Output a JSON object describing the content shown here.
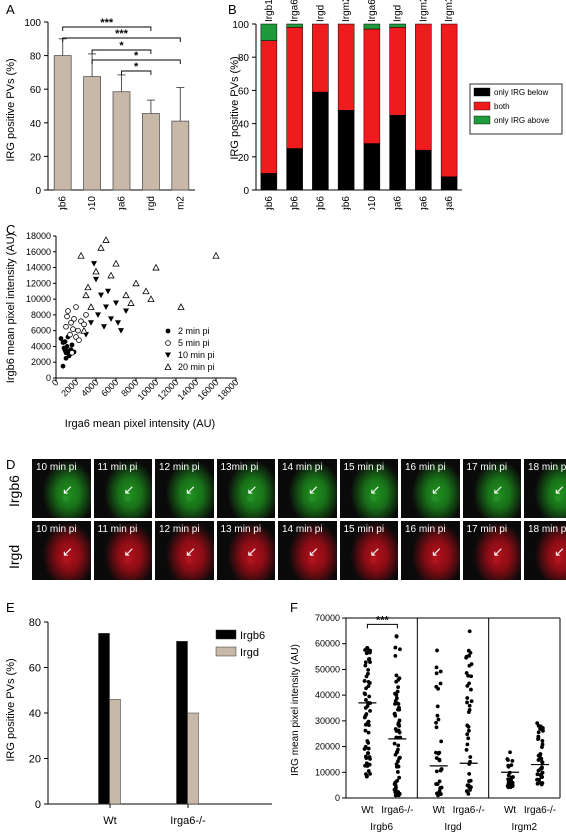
{
  "panels": {
    "A": "A",
    "B": "B",
    "C": "C",
    "D": "D",
    "E": "E",
    "F": "F"
  },
  "colors": {
    "bar_tan": "#c7b8a8",
    "black": "#000000",
    "red": "#ee1c1c",
    "green": "#1f9a3a",
    "mic_green": "#1f8f1f",
    "mic_red": "#b0101a"
  },
  "chart_data": [
    {
      "id": "A",
      "type": "bar",
      "ylabel": "IRG positive PVs (%)",
      "categories": [
        "Irgb6",
        "Irgb10",
        "Irga6",
        "Irgd",
        "Irgm2"
      ],
      "values": [
        80,
        67.5,
        58.5,
        45.5,
        41
      ],
      "errors": [
        10,
        13.5,
        10,
        8,
        20
      ],
      "ylim": [
        0,
        100
      ],
      "yticks": [
        "0",
        "20",
        "40",
        "60",
        "80",
        "100"
      ],
      "significance": [
        {
          "from": "Irgb6",
          "to": "Irgd",
          "label": "***"
        },
        {
          "from": "Irgb6",
          "to": "Irgm2",
          "label": "***"
        },
        {
          "from": "Irgb10",
          "to": "Irgd",
          "label": "*"
        },
        {
          "from": "Irgb10",
          "to": "Irgm2",
          "label": "*"
        },
        {
          "from": "Irga6",
          "to": "Irgd",
          "label": "*"
        }
      ]
    },
    {
      "id": "B",
      "type": "bar",
      "stacked": true,
      "ylabel": "IRG positive PVs (%)",
      "categories": [
        "Irgb6",
        "Irgb6",
        "Irgb6",
        "Irgb6",
        "Irgb10",
        "Irga6",
        "Irga6",
        "Irga6"
      ],
      "top_labels": [
        "Irgb10",
        "Irga6",
        "Irgd",
        "Irgm2",
        "Irga6",
        "Irgd",
        "Irgm2",
        "Irgm3"
      ],
      "ylim": [
        0,
        100
      ],
      "yticks": [
        "0",
        "20",
        "40",
        "60",
        "80",
        "100"
      ],
      "series": [
        {
          "name": "only IRG below",
          "values": [
            10,
            25,
            59,
            48,
            28,
            45,
            24,
            8
          ]
        },
        {
          "name": "both",
          "values": [
            80,
            73,
            41,
            52,
            69,
            53,
            76,
            92
          ]
        },
        {
          "name": "only IRG above",
          "values": [
            10,
            2,
            0,
            0,
            3,
            2,
            0,
            0
          ]
        }
      ],
      "legend": "right"
    },
    {
      "id": "C",
      "type": "scatter",
      "xlabel": "Irga6 mean pixel intensity (AU)",
      "ylabel": "Irgb6 mean pixel intensity (AU)",
      "xlim": [
        0,
        18000
      ],
      "ylim": [
        0,
        18000
      ],
      "xticks": [
        "0",
        "2000",
        "4000",
        "6000",
        "8000",
        "10000",
        "12000",
        "14000",
        "16000",
        "18000"
      ],
      "yticks": [
        "0",
        "2000",
        "4000",
        "6000",
        "8000",
        "10000",
        "12000",
        "14000",
        "16000",
        "18000"
      ],
      "legend": "right",
      "series": [
        {
          "name": "2 min pi",
          "marker": "filled-circle",
          "points": [
            [
              500,
              5000
            ],
            [
              700,
              4500
            ],
            [
              800,
              3800
            ],
            [
              900,
              3500
            ],
            [
              1000,
              3200
            ],
            [
              1100,
              4000
            ],
            [
              1200,
              3400
            ],
            [
              1300,
              2800
            ],
            [
              1500,
              3600
            ],
            [
              1600,
              4200
            ],
            [
              700,
              1500
            ],
            [
              1000,
              2500
            ],
            [
              1400,
              3000
            ],
            [
              1800,
              3300
            ],
            [
              1200,
              5200
            ],
            [
              900,
              4600
            ]
          ]
        },
        {
          "name": "5 min pi",
          "marker": "open-circle",
          "points": [
            [
              1000,
              6500
            ],
            [
              1200,
              8500
            ],
            [
              1500,
              7000
            ],
            [
              1800,
              7500
            ],
            [
              2000,
              9000
            ],
            [
              2200,
              6000
            ],
            [
              2500,
              7200
            ],
            [
              1400,
              5500
            ],
            [
              1700,
              6200
            ],
            [
              2800,
              6800
            ],
            [
              2000,
              5200
            ],
            [
              1100,
              7800
            ],
            [
              3000,
              8000
            ],
            [
              2300,
              4800
            ],
            [
              1600,
              3200
            ]
          ]
        },
        {
          "name": "10 min pi",
          "marker": "filled-triangle-down",
          "points": [
            [
              3800,
              14500
            ],
            [
              4000,
              12500
            ],
            [
              4500,
              10500
            ],
            [
              5000,
              9000
            ],
            [
              4200,
              8000
            ],
            [
              5500,
              7500
            ],
            [
              6000,
              9500
            ],
            [
              6500,
              6000
            ],
            [
              4800,
              6500
            ],
            [
              3500,
              7000
            ],
            [
              7000,
              8500
            ],
            [
              5200,
              11000
            ],
            [
              3000,
              5500
            ],
            [
              6200,
              7000
            ]
          ]
        },
        {
          "name": "20 min pi",
          "marker": "open-triangle",
          "points": [
            [
              2500,
              15500
            ],
            [
              3000,
              10500
            ],
            [
              3200,
              11500
            ],
            [
              4500,
              16500
            ],
            [
              5000,
              17500
            ],
            [
              5500,
              13000
            ],
            [
              6000,
              14500
            ],
            [
              7000,
              10500
            ],
            [
              7500,
              9500
            ],
            [
              8000,
              12000
            ],
            [
              9000,
              11000
            ],
            [
              9500,
              10000
            ],
            [
              10000,
              14000
            ],
            [
              12500,
              9000
            ],
            [
              16000,
              15500
            ],
            [
              4000,
              13500
            ],
            [
              3500,
              9000
            ],
            [
              2800,
              6000
            ]
          ]
        }
      ]
    },
    {
      "id": "E",
      "type": "bar",
      "ylabel": "IRG positive PVs (%)",
      "categories": [
        "Wt",
        "Irga6-/-"
      ],
      "ylim": [
        0,
        80
      ],
      "yticks": [
        "0",
        "20",
        "40",
        "60",
        "80"
      ],
      "series": [
        {
          "name": "Irgb6",
          "values": [
            75,
            71.5
          ]
        },
        {
          "name": "Irgd",
          "values": [
            46,
            40
          ]
        }
      ],
      "legend": "top-right"
    },
    {
      "id": "F",
      "type": "scatter",
      "ylabel": "IRG mean pixel intensity (AU)",
      "ylim": [
        0,
        70000
      ],
      "yticks": [
        "0",
        "10000",
        "20000",
        "30000",
        "40000",
        "50000",
        "60000",
        "70000"
      ],
      "groups": [
        {
          "label": "Irgb6",
          "columns": [
            {
              "label": "Wt",
              "median": 37000,
              "min": 8000,
              "max": 61000,
              "n": 60
            },
            {
              "label": "Irga6-/-",
              "median": 23000,
              "min": 1000,
              "max": 63000,
              "n": 70
            }
          ]
        },
        {
          "label": "Irgd",
          "columns": [
            {
              "label": "Wt",
              "median": 12500,
              "min": 1000,
              "max": 58000,
              "n": 35
            },
            {
              "label": "Irga6-/-",
              "median": 13500,
              "min": 1000,
              "max": 65000,
              "n": 40
            }
          ]
        },
        {
          "label": "Irgm2",
          "columns": [
            {
              "label": "Wt",
              "median": 10000,
              "min": 4000,
              "max": 19000,
              "n": 30
            },
            {
              "label": "Irga6-/-",
              "median": 13000,
              "min": 5000,
              "max": 29500,
              "n": 40
            }
          ]
        }
      ],
      "significance": [
        {
          "from": "Irgb6 Wt",
          "to": "Irgb6 Irga6-/-",
          "label": "***"
        }
      ]
    }
  ],
  "panel_d": {
    "rows": [
      {
        "label": "Irgb6",
        "tone": "green",
        "frames": [
          "10 min pi",
          "11 min pi",
          "12 min pi",
          "13min pi",
          "14 min pi",
          "15 min pi",
          "16 min pi",
          "17 min pi",
          "18 min pi"
        ]
      },
      {
        "label": "Irgd",
        "tone": "red",
        "frames": [
          "10 min pi",
          "11 min pi",
          "12 min pi",
          "13 min pi",
          "14 min pi",
          "15 min pi",
          "16 min pi",
          "17 min pi",
          "18 min pi"
        ]
      }
    ]
  }
}
